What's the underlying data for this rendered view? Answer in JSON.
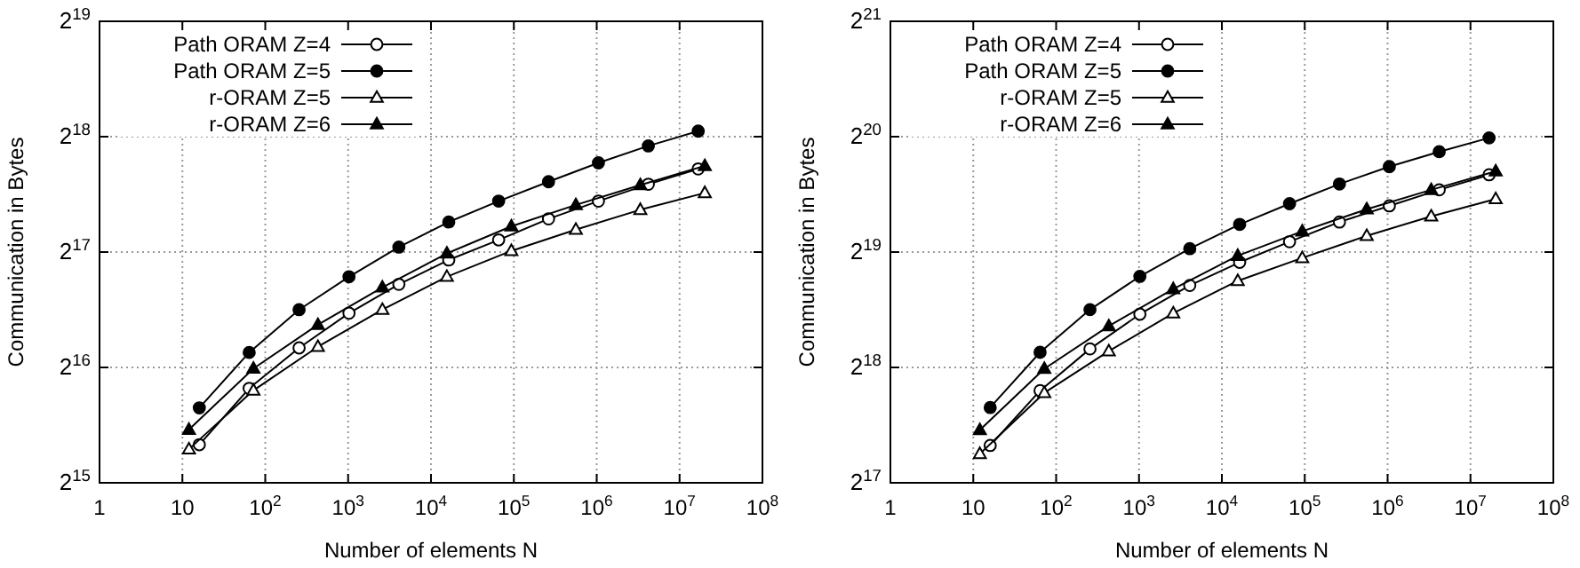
{
  "chart_data": [
    {
      "type": "line",
      "xlabel": "Number of elements N",
      "ylabel": "Communication in Bytes",
      "log": "xy",
      "grid": true,
      "legend": "top left",
      "line_style": "solid",
      "xlim": [
        1,
        100000000
      ],
      "xticks": [
        {
          "value": 1,
          "label": "1"
        },
        {
          "value": 10,
          "label": "10"
        },
        {
          "value": 100,
          "label": "10$^{2}$"
        },
        {
          "value": 1000,
          "label": "10$^{3}$"
        },
        {
          "value": 10000,
          "label": "10$^{4}$"
        },
        {
          "value": 100000,
          "label": "10$^{5}$"
        },
        {
          "value": 1000000,
          "label": "10$^{6}$"
        },
        {
          "value": 10000000,
          "label": "10$^{7}$"
        },
        {
          "value": 100000000,
          "label": "10$^{8}$"
        }
      ],
      "ylim": [
        32768,
        524288
      ],
      "yticks": [
        {
          "value": 32768,
          "label": "2$^{15}$"
        },
        {
          "value": 65536,
          "label": "2$^{16}$"
        },
        {
          "value": 131072,
          "label": "2$^{17}$"
        },
        {
          "value": 262144,
          "label": "2$^{18}$"
        },
        {
          "value": 524288,
          "label": "2$^{19}$"
        }
      ],
      "series": [
        {
          "name": "Path ORAM Z=4",
          "color": "#000000",
          "marker": "circle",
          "x": [
            16,
            64,
            256,
            1024,
            4096,
            16384,
            65536,
            262144,
            1048576,
            4194304,
            16777216
          ],
          "values": [
            41200,
            57800,
            73700,
            90800,
            108000,
            125000,
            141000,
            160000,
            178000,
            197000,
            216000
          ]
        },
        {
          "name": "Path ORAM Z=5",
          "color": "#000000",
          "marker": "circle",
          "x": [
            16,
            64,
            256,
            1024,
            4096,
            16384,
            65536,
            262144,
            1048576,
            4194304,
            16777216
          ],
          "values": [
            51400,
            71700,
            92700,
            113000,
            135000,
            157000,
            178000,
            200000,
            224000,
            248000,
            271000
          ]
        },
        {
          "name": "r-ORAM Z=5",
          "color": "#000000",
          "marker": "triangle",
          "x": [
            12,
            72,
            432,
            2592,
            15552,
            93312,
            559872,
            3359232,
            20155392
          ],
          "values": [
            40100,
            57100,
            74200,
            92700,
            113000,
            132000,
            150000,
            169000,
            187000
          ]
        },
        {
          "name": "r-ORAM Z=6",
          "color": "#000000",
          "marker": "triangle",
          "x": [
            12,
            72,
            432,
            2592,
            15552,
            93312,
            559872,
            3359232,
            20155392
          ],
          "values": [
            45100,
            65100,
            84700,
            106000,
            130000,
            153000,
            174000,
            196000,
            220000
          ]
        }
      ]
    },
    {
      "type": "line",
      "xlabel": "Number of elements N",
      "ylabel": "Communication in Bytes",
      "log": "xy",
      "grid": true,
      "legend": "top left",
      "line_style": "solid",
      "xlim": [
        1,
        100000000
      ],
      "xticks": [
        {
          "value": 1,
          "label": "1"
        },
        {
          "value": 10,
          "label": "10"
        },
        {
          "value": 100,
          "label": "10$^{2}$"
        },
        {
          "value": 1000,
          "label": "10$^{3}$"
        },
        {
          "value": 10000,
          "label": "10$^{4}$"
        },
        {
          "value": 100000,
          "label": "10$^{5}$"
        },
        {
          "value": 1000000,
          "label": "10$^{6}$"
        },
        {
          "value": 10000000,
          "label": "10$^{7}$"
        },
        {
          "value": 100000000,
          "label": "10$^{8}$"
        }
      ],
      "ylim": [
        131072,
        2097152
      ],
      "yticks": [
        {
          "value": 131072,
          "label": "2$^{17}$"
        },
        {
          "value": 262144,
          "label": "2$^{18}$"
        },
        {
          "value": 524288,
          "label": "2$^{19}$"
        },
        {
          "value": 1048576,
          "label": "2$^{20}$"
        },
        {
          "value": 2097152,
          "label": "2$^{21}$"
        }
      ],
      "series": [
        {
          "name": "Path ORAM Z=4",
          "color": "#000000",
          "marker": "circle",
          "x": [
            16,
            64,
            256,
            1024,
            4096,
            16384,
            65536,
            262144,
            1048576,
            4194304,
            16777216
          ],
          "values": [
            164000,
            228000,
            293000,
            361000,
            429000,
            493000,
            558000,
            628000,
            692000,
            762000,
            834000
          ]
        },
        {
          "name": "Path ORAM Z=5",
          "color": "#000000",
          "marker": "circle",
          "x": [
            16,
            64,
            256,
            1024,
            4096,
            16384,
            65536,
            262144,
            1048576,
            4194304,
            16777216
          ],
          "values": [
            206000,
            287000,
            371000,
            453000,
            535000,
            619000,
            701000,
            789000,
            876000,
            958000,
            1041000
          ]
        },
        {
          "name": "r-ORAM Z=5",
          "color": "#000000",
          "marker": "triangle",
          "x": [
            12,
            72,
            432,
            2592,
            15552,
            93312,
            559872,
            3359232,
            20155392
          ],
          "values": [
            156000,
            225000,
            289000,
            363000,
            441000,
            506000,
            578000,
            650000,
            721000
          ]
        },
        {
          "name": "r-ORAM Z=6",
          "color": "#000000",
          "marker": "triangle",
          "x": [
            12,
            72,
            432,
            2592,
            15552,
            93312,
            559872,
            3359232,
            20155392
          ],
          "values": [
            180000,
            260000,
            336000,
            420000,
            513000,
            594000,
            678000,
            762000,
            852000
          ]
        }
      ]
    }
  ]
}
